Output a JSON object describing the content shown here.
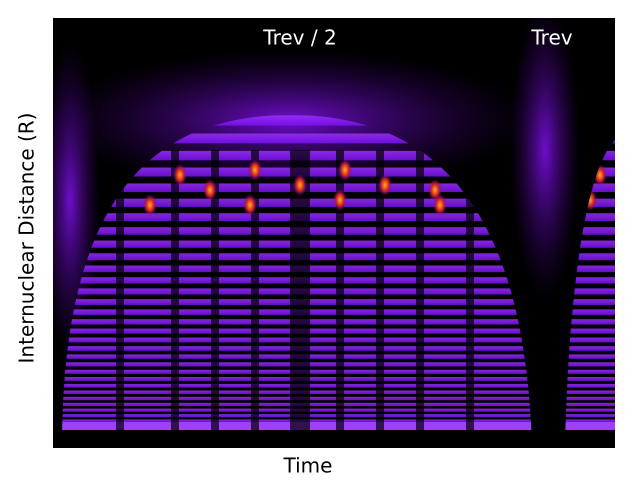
{
  "chart_data": {
    "type": "heatmap",
    "xlabel": "Time",
    "ylabel": "Internuclear Distance (R)",
    "annotations": [
      "Trev / 2",
      "Trev"
    ]
  }
}
